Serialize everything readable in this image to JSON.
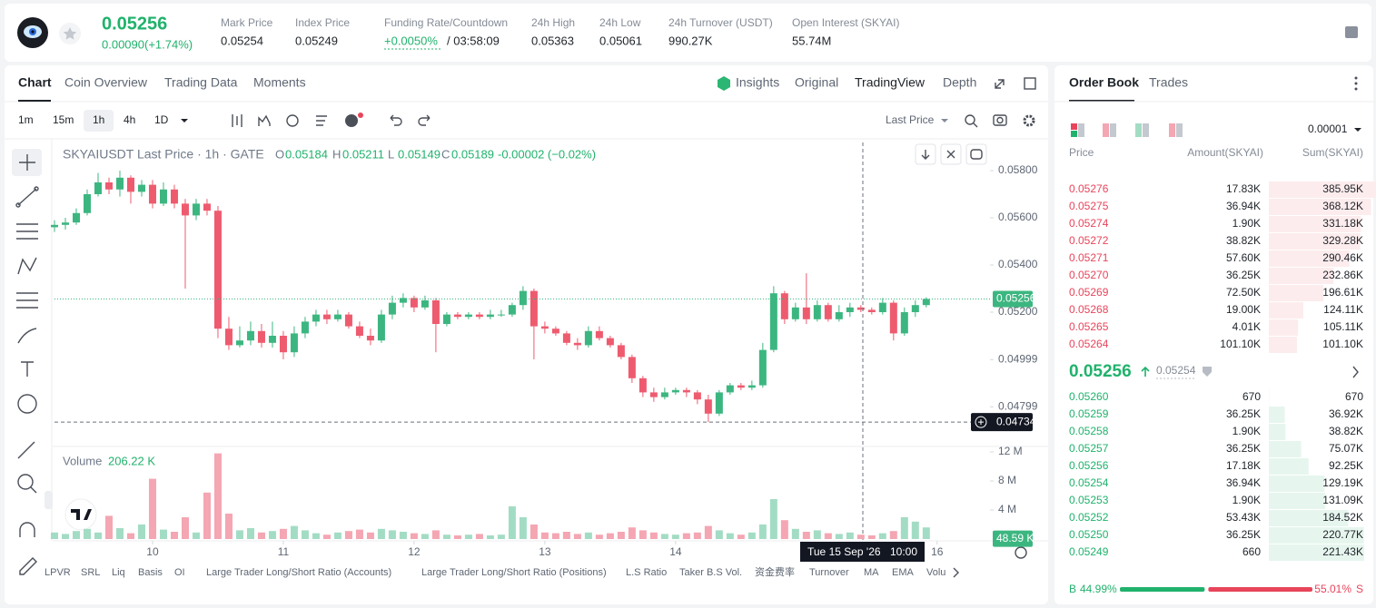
{
  "header": {
    "price": "0.05256",
    "change": "0.00090(+1.74%)",
    "stats": [
      {
        "label": "Mark Price",
        "value": "0.05254"
      },
      {
        "label": "Index Price",
        "value": "0.05249"
      },
      {
        "label": "Funding Rate/Countdown",
        "value": "+0.0050%",
        "countdown": "/ 03:58:09"
      },
      {
        "label": "24h High",
        "value": "0.05363"
      },
      {
        "label": "24h Low",
        "value": "0.05061"
      },
      {
        "label": "24h Turnover (USDT)",
        "value": "990.27K"
      },
      {
        "label": "Open Interest (SKYAI)",
        "value": "55.74M"
      }
    ]
  },
  "tabs": [
    "Chart",
    "Coin Overview",
    "Trading Data",
    "Moments"
  ],
  "views": [
    "Insights",
    "Original",
    "TradingView",
    "Depth"
  ],
  "intervals": [
    "1m",
    "15m",
    "1h",
    "4h",
    "1D"
  ],
  "price_source": "Last Price",
  "legend": {
    "symbol": "SKYAIUSDT Last Price · 1h · GATE",
    "ohlc": [
      [
        "O",
        "0.05184"
      ],
      [
        "H",
        "0.05211"
      ],
      [
        "L",
        "0.05149"
      ],
      [
        "C",
        "0.05189"
      ]
    ],
    "change": "-0.00002 (−0.02%)"
  },
  "chart_data": [
    {
      "type": "candlestick",
      "up_color": "#3cb680",
      "down_color": "#ee5b6f",
      "x": [
        0,
        2,
        4,
        6,
        8,
        10,
        12,
        14,
        16,
        18,
        20,
        22,
        24,
        26,
        28,
        30,
        32,
        34,
        36,
        38,
        40,
        42,
        44,
        46,
        48,
        50,
        52,
        54,
        56,
        58,
        60,
        62,
        64,
        66,
        68,
        70,
        72,
        74,
        76,
        78,
        80,
        82,
        84,
        86,
        88,
        90,
        92,
        94,
        96,
        98,
        100,
        102,
        104,
        106,
        108,
        110,
        112,
        114,
        116,
        118,
        120,
        122,
        124,
        126,
        128,
        130,
        132,
        134,
        136,
        138,
        140,
        142,
        144,
        146,
        148,
        150,
        152,
        154,
        156,
        158,
        160
      ],
      "open": [
        0.0556,
        0.0557,
        0.0558,
        0.0562,
        0.057,
        0.0575,
        0.0572,
        0.0577,
        0.0571,
        0.0574,
        0.0566,
        0.0572,
        0.0566,
        0.0561,
        0.0566,
        0.0563,
        0.0513,
        0.0506,
        0.0508,
        0.0512,
        0.0507,
        0.051,
        0.0503,
        0.0511,
        0.0516,
        0.0519,
        0.0517,
        0.0519,
        0.0514,
        0.051,
        0.0508,
        0.0519,
        0.0524,
        0.0526,
        0.0522,
        0.0525,
        0.0515,
        0.0519,
        0.0518,
        0.0519,
        0.0518,
        0.0519,
        0.0519,
        0.0523,
        0.0529,
        0.0514,
        0.0513,
        0.0511,
        0.0507,
        0.0506,
        0.0512,
        0.0509,
        0.0506,
        0.0501,
        0.0492,
        0.0486,
        0.0484,
        0.0486,
        0.0487,
        0.0486,
        0.0483,
        0.0477,
        0.0486,
        0.0489,
        0.0488,
        0.0489,
        0.0504,
        0.0528,
        0.0517,
        0.0522,
        0.0517,
        0.0523,
        0.0517,
        0.052,
        0.0522,
        0.0521,
        0.052,
        0.0524,
        0.0511,
        0.052,
        0.0523
      ],
      "high": [
        0.0559,
        0.056,
        0.0564,
        0.0572,
        0.0579,
        0.0577,
        0.058,
        0.0578,
        0.0576,
        0.0576,
        0.0575,
        0.0574,
        0.0568,
        0.0568,
        0.0568,
        0.0565,
        0.0518,
        0.0514,
        0.0516,
        0.0515,
        0.0516,
        0.0512,
        0.0514,
        0.0518,
        0.0521,
        0.0521,
        0.0521,
        0.052,
        0.0516,
        0.0513,
        0.0521,
        0.0527,
        0.0528,
        0.0527,
        0.0527,
        0.0526,
        0.052,
        0.052,
        0.052,
        0.052,
        0.0521,
        0.0521,
        0.0524,
        0.0531,
        0.053,
        0.0516,
        0.0514,
        0.0512,
        0.0509,
        0.0514,
        0.0514,
        0.051,
        0.0507,
        0.0502,
        0.0493,
        0.0488,
        0.0488,
        0.0488,
        0.0488,
        0.0487,
        0.0485,
        0.0487,
        0.049,
        0.049,
        0.0491,
        0.0507,
        0.0531,
        0.0529,
        0.0524,
        0.05365,
        0.0525,
        0.0524,
        0.0523,
        0.0524,
        0.0523,
        0.0522,
        0.0526,
        0.0525,
        0.0522,
        0.0525,
        0.05263
      ],
      "low": [
        0.0554,
        0.0555,
        0.0557,
        0.0561,
        0.0569,
        0.057,
        0.0569,
        0.0566,
        0.0569,
        0.0564,
        0.0565,
        0.0564,
        0.053,
        0.0559,
        0.0561,
        0.0509,
        0.0504,
        0.0505,
        0.0506,
        0.0505,
        0.0505,
        0.05,
        0.0501,
        0.0509,
        0.0514,
        0.0515,
        0.0516,
        0.0513,
        0.0509,
        0.0506,
        0.0507,
        0.0517,
        0.0522,
        0.052,
        0.0521,
        0.0503,
        0.0514,
        0.0517,
        0.0517,
        0.0517,
        0.0517,
        0.0518,
        0.0518,
        0.0521,
        0.05,
        0.0511,
        0.051,
        0.0506,
        0.0504,
        0.0505,
        0.0508,
        0.0505,
        0.05,
        0.049,
        0.0484,
        0.0482,
        0.0483,
        0.0485,
        0.0484,
        0.0481,
        0.04734,
        0.0476,
        0.0485,
        0.0487,
        0.0487,
        0.0488,
        0.0503,
        0.0515,
        0.0516,
        0.0515,
        0.0516,
        0.0516,
        0.0516,
        0.0518,
        0.052,
        0.0519,
        0.0519,
        0.0508,
        0.051,
        0.0518,
        0.0522
      ],
      "close": [
        0.0557,
        0.0558,
        0.0562,
        0.057,
        0.0575,
        0.0572,
        0.0577,
        0.0571,
        0.0574,
        0.0566,
        0.0572,
        0.0566,
        0.0561,
        0.0566,
        0.0563,
        0.0513,
        0.0506,
        0.0508,
        0.0512,
        0.0507,
        0.051,
        0.0503,
        0.0511,
        0.0516,
        0.0519,
        0.0517,
        0.0519,
        0.0514,
        0.051,
        0.0508,
        0.0519,
        0.0524,
        0.0526,
        0.0522,
        0.0525,
        0.0515,
        0.0519,
        0.0518,
        0.0519,
        0.0518,
        0.0519,
        0.0519,
        0.0523,
        0.0529,
        0.0514,
        0.0513,
        0.0511,
        0.0507,
        0.0506,
        0.0512,
        0.0509,
        0.0506,
        0.0501,
        0.0492,
        0.0486,
        0.0484,
        0.0486,
        0.0487,
        0.0486,
        0.0483,
        0.0477,
        0.0486,
        0.0489,
        0.0488,
        0.0489,
        0.0504,
        0.0528,
        0.0517,
        0.0522,
        0.0517,
        0.0523,
        0.0517,
        0.052,
        0.0522,
        0.0521,
        0.052,
        0.0524,
        0.0511,
        0.052,
        0.0523,
        0.05256
      ],
      "xlim": [
        0,
        171.7
      ],
      "xticks": [
        {
          "value": 18,
          "label": "10"
        },
        {
          "value": 42,
          "label": "11"
        },
        {
          "value": 66,
          "label": "12"
        },
        {
          "value": 90,
          "label": "13"
        },
        {
          "value": 114,
          "label": "14"
        },
        {
          "value": 162,
          "label": "16"
        }
      ],
      "ylim": [
        0.046308,
        0.059192
      ],
      "yticks": [
        {
          "value": 0.058,
          "label": "0.05800"
        },
        {
          "value": 0.056,
          "label": "0.05600"
        },
        {
          "value": 0.054,
          "label": "0.05400"
        },
        {
          "value": 0.052,
          "label": "0.05200"
        },
        0.04999,
        0.04799
      ],
      "last_price": 0.05256,
      "cursor_price": 0.04734,
      "crosshair": {
        "date": "Tue 15 Sep '26",
        "time": "10:00"
      }
    },
    {
      "type": "bar",
      "title": "Volume",
      "current": {
        "value": 0.20622,
        "label": "206.22 K"
      },
      "up_color": "#a3dcc4",
      "down_color": "#f4a6b2",
      "values": [
        0.9,
        0.7,
        1.1,
        1.4,
        0.9,
        3.2,
        1.5,
        0.8,
        2.0,
        8.3,
        1.3,
        1.0,
        3.0,
        0.9,
        6.4,
        11.8,
        3.5,
        1.2,
        1.5,
        0.9,
        1.1,
        1.4,
        1.8,
        1.2,
        0.8,
        0.6,
        0.9,
        1.1,
        1.3,
        0.9,
        1.4,
        1.2,
        1.0,
        0.8,
        0.7,
        1.2,
        0.6,
        0.5,
        0.6,
        0.7,
        0.5,
        0.6,
        4.5,
        3.0,
        2.0,
        0.9,
        0.8,
        1.0,
        0.7,
        0.9,
        0.6,
        0.8,
        1.0,
        1.6,
        1.2,
        0.9,
        0.7,
        0.6,
        0.8,
        0.9,
        1.8,
        1.2,
        0.8,
        0.6,
        0.9,
        2.0,
        5.5,
        2.6,
        1.4,
        1.0,
        1.2,
        0.8,
        0.7,
        0.9,
        0.6,
        0.5,
        0.8,
        1.1,
        3.0,
        2.4,
        1.6
      ],
      "ylim": [
        0,
        12.625
      ],
      "yticks": [
        {
          "value": 12,
          "label": "12 M"
        },
        {
          "value": 8,
          "label": "8 M"
        },
        {
          "value": 4,
          "label": "4 M"
        }
      ],
      "last": {
        "value": 0.04859,
        "label": "48.59 K"
      }
    }
  ],
  "indicators": [
    "LPVR",
    "SRL",
    "Liq",
    "Basis",
    "OI",
    "Large Trader Long/Short Ratio (Accounts)",
    "Large Trader Long/Short Ratio (Positions)",
    "L.S Ratio",
    "Taker B.S Vol.",
    "资金费率",
    "Turnover",
    "MA",
    "EMA",
    "Volu"
  ],
  "order_book": {
    "tabs": [
      "Order Book",
      "Trades"
    ],
    "precision": "0.00001",
    "columns": [
      "Price",
      "Amount(SKYAI)",
      "Sum(SKYAI)"
    ],
    "asks": [
      [
        "0.05276",
        "17.83K",
        "385.95K"
      ],
      [
        "0.05275",
        "36.94K",
        "368.12K"
      ],
      [
        "0.05274",
        "1.90K",
        "331.18K"
      ],
      [
        "0.05272",
        "38.82K",
        "329.28K"
      ],
      [
        "0.05271",
        "57.60K",
        "290.46K"
      ],
      [
        "0.05270",
        "36.25K",
        "232.86K"
      ],
      [
        "0.05269",
        "72.50K",
        "196.61K"
      ],
      [
        "0.05268",
        "19.00K",
        "124.11K"
      ],
      [
        "0.05265",
        "4.01K",
        "105.11K"
      ],
      [
        "0.05264",
        "101.10K",
        "101.10K"
      ]
    ],
    "last": "0.05256",
    "mark": "0.05254",
    "bids": [
      [
        "0.05260",
        "670",
        "670"
      ],
      [
        "0.05259",
        "36.25K",
        "36.92K"
      ],
      [
        "0.05258",
        "1.90K",
        "38.82K"
      ],
      [
        "0.05257",
        "36.25K",
        "75.07K"
      ],
      [
        "0.05256",
        "17.18K",
        "92.25K"
      ],
      [
        "0.05254",
        "36.94K",
        "129.19K"
      ],
      [
        "0.05253",
        "1.90K",
        "131.09K"
      ],
      [
        "0.05252",
        "53.43K",
        "184.52K"
      ],
      [
        "0.05250",
        "36.25K",
        "220.77K"
      ],
      [
        "0.05249",
        "660",
        "221.43K"
      ]
    ],
    "ratio": {
      "labels": [
        "B",
        "S"
      ],
      "values": [
        44.99,
        55.01
      ],
      "value_labels": [
        "44.99%",
        "55.01%"
      ]
    }
  }
}
